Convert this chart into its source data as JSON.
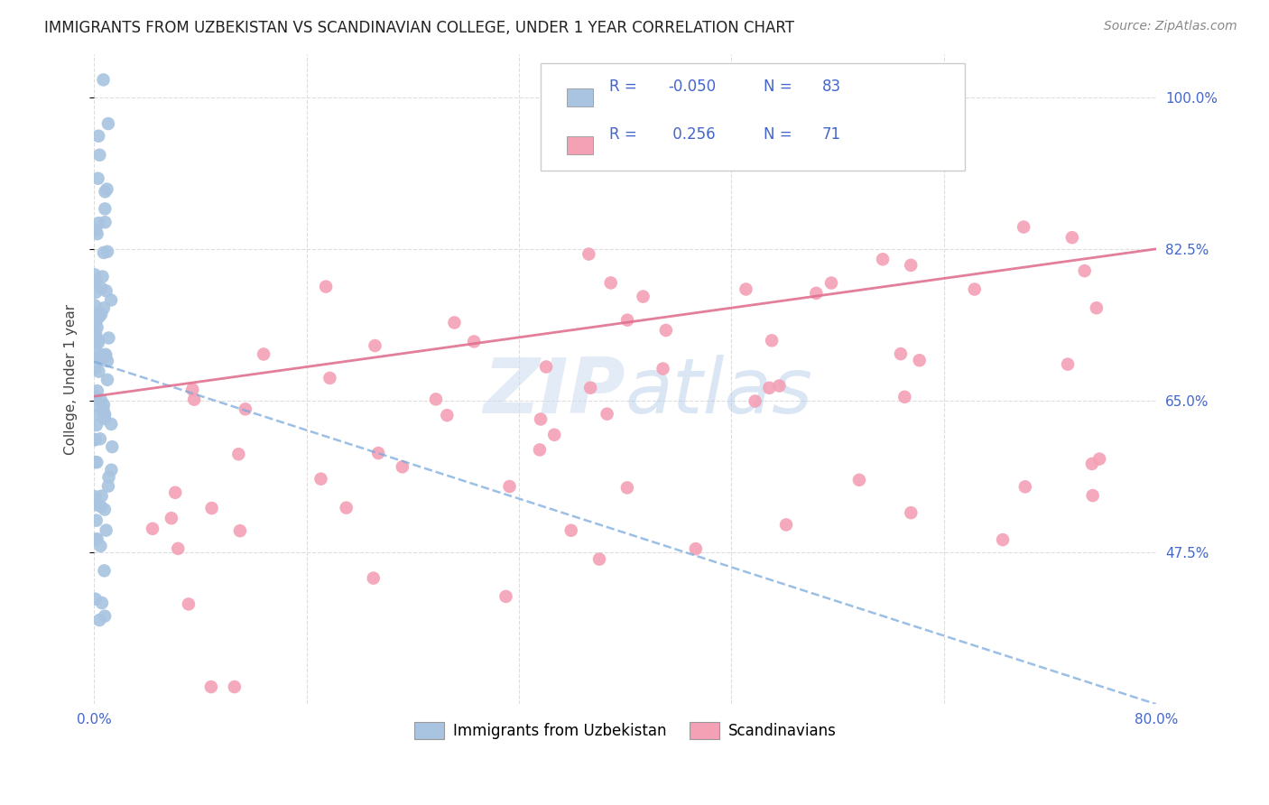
{
  "title": "IMMIGRANTS FROM UZBEKISTAN VS SCANDINAVIAN COLLEGE, UNDER 1 YEAR CORRELATION CHART",
  "source": "Source: ZipAtlas.com",
  "ylabel": "College, Under 1 year",
  "xmin": 0.0,
  "xmax": 0.8,
  "ymin": 0.3,
  "ymax": 1.05,
  "yticks": [
    0.475,
    0.65,
    0.825,
    1.0
  ],
  "ytick_labels": [
    "47.5%",
    "65.0%",
    "82.5%",
    "100.0%"
  ],
  "uzbek_color": "#a8c4e0",
  "scand_color": "#f4a0b5",
  "uzbek_line_color": "#7aaadd",
  "scand_line_color": "#e07090",
  "text_blue": "#4466cc",
  "background_color": "#ffffff",
  "grid_color": "#dddddd",
  "uzbek_R": -0.05,
  "uzbek_N": 83,
  "scand_R": 0.256,
  "scand_N": 71
}
